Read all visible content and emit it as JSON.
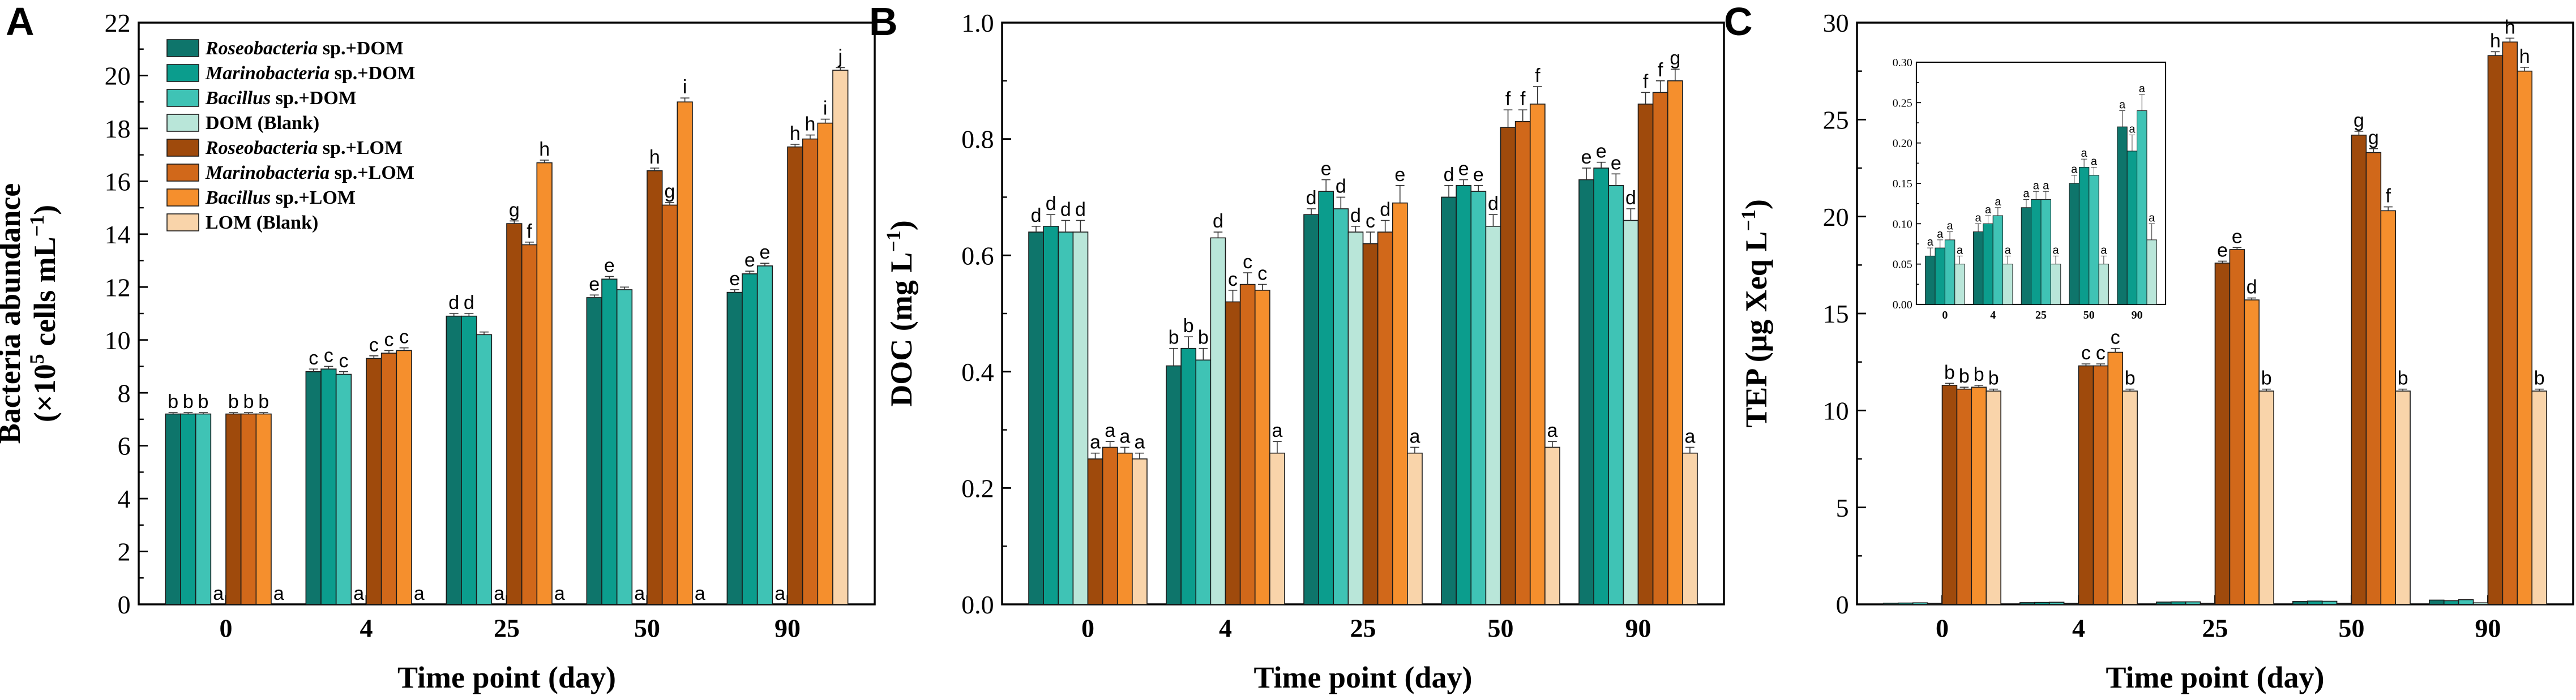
{
  "figure": {
    "panel_letters": [
      "A",
      "B",
      "C"
    ],
    "xlabel": "Time point (day)",
    "legend": [
      {
        "species": "Roseobacteria",
        "rest": " sp.+DOM",
        "italic": true
      },
      {
        "species": "Marinobacteria",
        "rest": " sp.+DOM",
        "italic": true
      },
      {
        "species": "Bacillus",
        "rest": " sp.+DOM",
        "italic": true
      },
      {
        "species": "",
        "rest": "DOM (Blank)",
        "italic": false
      },
      {
        "species": "Roseobacteria",
        "rest": " sp.+LOM",
        "italic": true
      },
      {
        "species": "Marinobacteria",
        "rest": " sp.+LOM",
        "italic": true
      },
      {
        "species": "Bacillus",
        "rest": " sp.+LOM",
        "italic": true
      },
      {
        "species": "",
        "rest": "LOM (Blank)",
        "italic": false
      }
    ],
    "colors": [
      "#0e756b",
      "#0b9d8d",
      "#3fc3b5",
      "#b9e6d9",
      "#9f4a0c",
      "#d1681a",
      "#f58f2d",
      "#f9d4aa"
    ]
  },
  "chart_data": [
    {
      "type": "bar",
      "panel": "A",
      "ylabel_line1": "Bacteria abundance",
      "ylabel_line2_pre": "(×10",
      "ylabel_line2_sup": "5",
      "ylabel_line2_mid": " cells mL",
      "ylabel_line2_sup2": "−1",
      "ylabel_line2_post": ")",
      "ylim": [
        0,
        22
      ],
      "yticks": [
        0,
        2,
        4,
        6,
        8,
        10,
        12,
        14,
        16,
        18,
        20,
        22
      ],
      "tick_decimals": 0,
      "categories": [
        "0",
        "4",
        "25",
        "50",
        "90"
      ],
      "series": [
        {
          "name": "Roseobacteria sp.+DOM",
          "values": [
            7.2,
            8.8,
            10.9,
            11.6,
            11.8
          ],
          "errors": [
            0.05,
            0.1,
            0.1,
            0.1,
            0.1
          ],
          "letters": [
            "b",
            "c",
            "d",
            "e",
            "e"
          ]
        },
        {
          "name": "Marinobacteria sp.+DOM",
          "values": [
            7.2,
            8.9,
            10.9,
            12.3,
            12.5
          ],
          "errors": [
            0.05,
            0.1,
            0.1,
            0.1,
            0.1
          ],
          "letters": [
            "b",
            "c",
            "d",
            "e",
            "e"
          ]
        },
        {
          "name": "Bacillus sp.+DOM",
          "values": [
            7.2,
            8.7,
            10.2,
            11.9,
            12.8
          ],
          "errors": [
            0.05,
            0.1,
            0.1,
            0.1,
            0.1
          ],
          "letters": [
            "b",
            "c",
            "",
            "",
            "e"
          ]
        },
        {
          "name": "DOM (Blank)",
          "values": [
            0,
            0,
            0,
            0,
            0
          ],
          "errors": [
            0,
            0,
            0,
            0,
            0
          ],
          "letters": [
            "a",
            "a",
            "a",
            "a",
            "a"
          ]
        },
        {
          "name": "Roseobacteria sp.+LOM",
          "values": [
            7.2,
            9.3,
            14.4,
            16.4,
            17.3
          ],
          "errors": [
            0.05,
            0.1,
            0.1,
            0.1,
            0.1
          ],
          "letters": [
            "b",
            "c",
            "g",
            "h",
            "h"
          ]
        },
        {
          "name": "Marinobacteria sp.+LOM",
          "values": [
            7.2,
            9.5,
            13.6,
            15.1,
            17.6
          ],
          "errors": [
            0.05,
            0.1,
            0.1,
            0.1,
            0.15
          ],
          "letters": [
            "b",
            "c",
            "f",
            "g",
            "h"
          ]
        },
        {
          "name": "Bacillus sp.+LOM",
          "values": [
            7.2,
            9.6,
            16.7,
            19.0,
            18.2
          ],
          "errors": [
            0.05,
            0.1,
            0.1,
            0.15,
            0.15
          ],
          "letters": [
            "b",
            "c",
            "h",
            "i",
            "i"
          ]
        },
        {
          "name": "LOM (Blank)",
          "values": [
            0,
            0,
            0,
            0,
            20.2
          ],
          "errors": [
            0,
            0,
            0,
            0,
            0.1
          ],
          "letters": [
            "a",
            "a",
            "a",
            "a",
            "j"
          ]
        }
      ]
    },
    {
      "type": "bar",
      "panel": "B",
      "ylabel_line1": "DOC (mg L",
      "ylabel_line1_sup": "−1",
      "ylabel_line1_post": ")",
      "ylim": [
        0,
        1.0
      ],
      "yticks": [
        0.0,
        0.2,
        0.4,
        0.6,
        0.8,
        1.0
      ],
      "tick_decimals": 1,
      "categories": [
        "0",
        "4",
        "25",
        "50",
        "90"
      ],
      "series": [
        {
          "name": "Roseobacteria sp.+DOM",
          "values": [
            0.64,
            0.41,
            0.67,
            0.7,
            0.73
          ],
          "errors": [
            0.01,
            0.03,
            0.01,
            0.02,
            0.02
          ],
          "letters": [
            "d",
            "b",
            "d",
            "d",
            "e"
          ]
        },
        {
          "name": "Marinobacteria sp.+DOM",
          "values": [
            0.65,
            0.44,
            0.71,
            0.72,
            0.75
          ],
          "errors": [
            0.02,
            0.02,
            0.02,
            0.01,
            0.01
          ],
          "letters": [
            "d",
            "b",
            "e",
            "e",
            "e"
          ]
        },
        {
          "name": "Bacillus sp.+DOM",
          "values": [
            0.64,
            0.42,
            0.68,
            0.71,
            0.72
          ],
          "errors": [
            0.02,
            0.02,
            0.02,
            0.01,
            0.02
          ],
          "letters": [
            "d",
            "b",
            "d",
            "e",
            "e"
          ]
        },
        {
          "name": "DOM (Blank)",
          "values": [
            0.64,
            0.63,
            0.64,
            0.65,
            0.66
          ],
          "errors": [
            0.02,
            0.01,
            0.01,
            0.02,
            0.02
          ],
          "letters": [
            "d",
            "d",
            "d",
            "d",
            "d"
          ]
        },
        {
          "name": "Roseobacteria sp.+LOM",
          "values": [
            0.25,
            0.52,
            0.62,
            0.82,
            0.86
          ],
          "errors": [
            0.01,
            0.02,
            0.02,
            0.03,
            0.02
          ],
          "letters": [
            "a",
            "c",
            "c",
            "f",
            "f"
          ]
        },
        {
          "name": "Marinobacteria sp.+LOM",
          "values": [
            0.27,
            0.55,
            0.64,
            0.83,
            0.88
          ],
          "errors": [
            0.01,
            0.02,
            0.02,
            0.02,
            0.02
          ],
          "letters": [
            "a",
            "c",
            "d",
            "f",
            "f"
          ]
        },
        {
          "name": "Bacillus sp.+LOM",
          "values": [
            0.26,
            0.54,
            0.69,
            0.86,
            0.9
          ],
          "errors": [
            0.01,
            0.01,
            0.03,
            0.03,
            0.02
          ],
          "letters": [
            "a",
            "c",
            "e",
            "f",
            "g"
          ]
        },
        {
          "name": "LOM (Blank)",
          "values": [
            0.25,
            0.26,
            0.26,
            0.27,
            0.26
          ],
          "errors": [
            0.01,
            0.02,
            0.01,
            0.01,
            0.01
          ],
          "letters": [
            "a",
            "a",
            "a",
            "a",
            "a"
          ]
        }
      ]
    },
    {
      "type": "bar",
      "panel": "C",
      "ylabel_line1": "TEP (μg Xeq L",
      "ylabel_line1_sup": "−1",
      "ylabel_line1_post": ")",
      "ylim": [
        0,
        30
      ],
      "yticks": [
        0,
        5,
        10,
        15,
        20,
        25,
        30
      ],
      "tick_decimals": 0,
      "categories": [
        "0",
        "4",
        "25",
        "50",
        "90"
      ],
      "series": [
        {
          "name": "Roseobacteria sp.+DOM",
          "values": [
            0.06,
            0.09,
            0.12,
            0.15,
            0.22
          ],
          "errors": [
            0,
            0,
            0,
            0,
            0
          ],
          "letters": [
            "",
            "",
            "",
            "",
            ""
          ]
        },
        {
          "name": "Marinobacteria sp.+DOM",
          "values": [
            0.07,
            0.1,
            0.13,
            0.17,
            0.19
          ],
          "errors": [
            0,
            0,
            0,
            0,
            0
          ],
          "letters": [
            "",
            "",
            "",
            "",
            ""
          ]
        },
        {
          "name": "Bacillus sp.+DOM",
          "values": [
            0.08,
            0.11,
            0.13,
            0.16,
            0.24
          ],
          "errors": [
            0,
            0,
            0,
            0,
            0
          ],
          "letters": [
            "",
            "",
            "",
            "",
            ""
          ]
        },
        {
          "name": "DOM (Blank)",
          "values": [
            0.05,
            0.05,
            0.05,
            0.05,
            0.08
          ],
          "errors": [
            0,
            0,
            0,
            0,
            0
          ],
          "letters": [
            "",
            "",
            "",
            "",
            ""
          ]
        },
        {
          "name": "Roseobacteria sp.+LOM",
          "values": [
            11.3,
            12.3,
            17.6,
            24.2,
            28.3
          ],
          "errors": [
            0.1,
            0.1,
            0.1,
            0.2,
            0.2
          ],
          "letters": [
            "b",
            "c",
            "e",
            "g",
            "h"
          ]
        },
        {
          "name": "Marinobacteria sp.+LOM",
          "values": [
            11.1,
            12.3,
            18.3,
            23.3,
            29.0
          ],
          "errors": [
            0.1,
            0.1,
            0.1,
            0.2,
            0.2
          ],
          "letters": [
            "b",
            "c",
            "e",
            "g",
            "h"
          ]
        },
        {
          "name": "Bacillus sp.+LOM",
          "values": [
            11.2,
            13.0,
            15.7,
            20.3,
            27.5
          ],
          "errors": [
            0.1,
            0.2,
            0.1,
            0.2,
            0.2
          ],
          "letters": [
            "b",
            "c",
            "d",
            "f",
            "h"
          ]
        },
        {
          "name": "LOM (Blank)",
          "values": [
            11.0,
            11.0,
            11.0,
            11.0,
            11.0
          ],
          "errors": [
            0.1,
            0.1,
            0.1,
            0.1,
            0.1
          ],
          "letters": [
            "b",
            "b",
            "b",
            "b",
            "b"
          ]
        }
      ],
      "inset": {
        "type": "bar",
        "ylim": [
          0,
          0.3
        ],
        "yticks": [
          0.0,
          0.05,
          0.1,
          0.15,
          0.2,
          0.25,
          0.3
        ],
        "tick_decimals": 2,
        "categories": [
          "0",
          "4",
          "25",
          "50",
          "90"
        ],
        "series": [
          {
            "name": "Roseobacteria sp.+DOM",
            "values": [
              0.06,
              0.09,
              0.12,
              0.15,
              0.22
            ],
            "errors": [
              0.01,
              0.01,
              0.01,
              0.01,
              0.02
            ],
            "letters": [
              "a",
              "a",
              "a",
              "a",
              "a"
            ]
          },
          {
            "name": "Marinobacteria sp.+DOM",
            "values": [
              0.07,
              0.1,
              0.13,
              0.17,
              0.19
            ],
            "errors": [
              0.01,
              0.01,
              0.01,
              0.01,
              0.02
            ],
            "letters": [
              "a",
              "a",
              "a",
              "a",
              "a"
            ]
          },
          {
            "name": "Bacillus sp.+DOM",
            "values": [
              0.08,
              0.11,
              0.13,
              0.16,
              0.24
            ],
            "errors": [
              0.01,
              0.01,
              0.01,
              0.01,
              0.02
            ],
            "letters": [
              "a",
              "a",
              "a",
              "a",
              "a"
            ]
          },
          {
            "name": "DOM (Blank)",
            "values": [
              0.05,
              0.05,
              0.05,
              0.05,
              0.08
            ],
            "errors": [
              0.01,
              0.01,
              0.01,
              0.01,
              0.02
            ],
            "letters": [
              "a",
              "a",
              "a",
              "a",
              "a"
            ]
          }
        ]
      }
    }
  ]
}
